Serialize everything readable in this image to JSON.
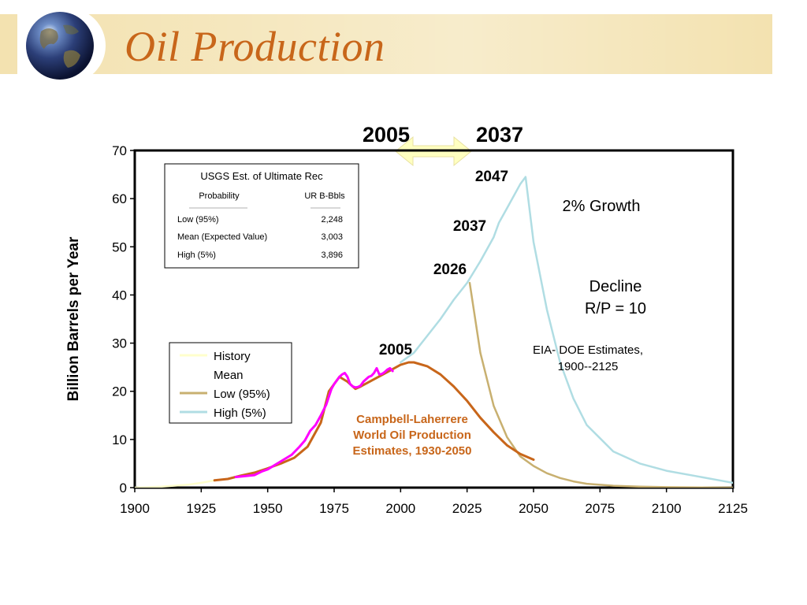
{
  "slide": {
    "title": "Oil Production",
    "icon": "globe-icon",
    "header_color": "#f3e2b0",
    "title_color": "#c8661a"
  },
  "chart_data": {
    "type": "line",
    "title": "",
    "xlabel": "",
    "ylabel": "Billion Barrels per Year",
    "xlim": [
      1900,
      2125
    ],
    "ylim": [
      0,
      70
    ],
    "x_ticks": [
      "1900",
      "1925",
      "1950",
      "1975",
      "2000",
      "2025",
      "2050",
      "2075",
      "2100",
      "2125"
    ],
    "y_ticks": [
      "0",
      "10",
      "20",
      "30",
      "40",
      "50",
      "60",
      "70"
    ],
    "grid": false,
    "legend_position": "left-middle",
    "legend": [
      "History",
      "Mean",
      "Low (95%)",
      "High (5%)"
    ],
    "series": [
      {
        "name": "History",
        "color": "#ffffcc",
        "x": [
          1900,
          1910,
          1920,
          1925,
          1930
        ],
        "y": [
          0,
          0.2,
          0.6,
          1.0,
          1.5
        ]
      },
      {
        "name": "High (5%)",
        "color": "#b0dde3",
        "x": [
          2000,
          2005,
          2010,
          2015,
          2020,
          2025,
          2030,
          2035,
          2037,
          2040,
          2045,
          2047,
          2050,
          2055,
          2060,
          2065,
          2070,
          2080,
          2090,
          2100,
          2110,
          2120,
          2125
        ],
        "y": [
          26,
          28,
          31.5,
          35,
          39,
          42.5,
          47,
          52,
          55,
          58,
          63,
          64.5,
          51,
          37,
          26,
          18.5,
          13,
          7.5,
          5,
          3.5,
          2.5,
          1.5,
          1
        ]
      },
      {
        "name": "Low (95%)",
        "color": "#c8b070",
        "x": [
          2026,
          2030,
          2035,
          2040,
          2045,
          2050,
          2055,
          2060,
          2065,
          2070,
          2080,
          2090,
          2100,
          2125
        ],
        "y": [
          42.5,
          28,
          17,
          10.5,
          6.5,
          4.5,
          3,
          2,
          1.3,
          0.8,
          0.4,
          0.2,
          0.1,
          0
        ]
      },
      {
        "name": "Campbell-Laherrere",
        "color": "#c8661a",
        "x": [
          1930,
          1935,
          1940,
          1945,
          1950,
          1955,
          1960,
          1965,
          1970,
          1973,
          1977,
          1980,
          1983,
          1985,
          1990,
          1995,
          2000,
          2003,
          2005,
          2010,
          2015,
          2020,
          2025,
          2030,
          2035,
          2040,
          2045,
          2050
        ],
        "y": [
          1.5,
          1.8,
          2.5,
          3.1,
          4,
          5,
          6.2,
          8.5,
          13.5,
          20,
          23,
          22,
          20.5,
          21,
          22.5,
          24,
          25.5,
          26,
          26,
          25.2,
          23.5,
          21,
          18,
          14.5,
          11.5,
          8.8,
          7,
          5.8
        ]
      },
      {
        "name": "History (actual)",
        "color": "#ff00ff",
        "x": [
          1938,
          1940,
          1945,
          1948,
          1950,
          1953,
          1956,
          1959,
          1962,
          1964,
          1966,
          1968,
          1970,
          1972,
          1974,
          1975,
          1977,
          1978,
          1979,
          1980,
          1981,
          1982,
          1983,
          1984,
          1985,
          1986,
          1987,
          1988,
          1989,
          1990,
          1991,
          1992,
          1993,
          1994,
          1995,
          1996,
          1997
        ],
        "y": [
          2.2,
          2.3,
          2.6,
          3.4,
          3.8,
          4.8,
          5.8,
          6.8,
          8.5,
          9.8,
          11.8,
          13,
          15,
          17.2,
          20.5,
          21.5,
          23,
          23.5,
          23.8,
          23,
          21.5,
          21,
          20.8,
          20.9,
          21.2,
          22,
          22.5,
          23,
          23.2,
          23.8,
          24.8,
          23.5,
          23.6,
          24,
          24.5,
          24.8,
          24.2
        ]
      }
    ],
    "table": {
      "title": "USGS Est. of Ultimate Rec",
      "headers": [
        "Probability",
        "UR B-Bbls"
      ],
      "rows": [
        [
          "Low (95%)",
          "2,248"
        ],
        [
          "Mean (Expected Value)",
          "3,003"
        ],
        [
          "High (5%)",
          "3,896"
        ]
      ]
    },
    "annotations": {
      "top_left_year": "2005",
      "top_right_year": "2037",
      "label_2047": "2047",
      "label_2037": "2037",
      "label_2026": "2026",
      "label_2005": "2005",
      "growth": "2% Growth",
      "decline_1": "Decline",
      "decline_2": "R/P = 10",
      "eia_1": "EIA- DOE Estimates,",
      "eia_2": "1900--2125",
      "campbell_1": "Campbell-Laherrere",
      "campbell_2": "World Oil Production",
      "campbell_3": "Estimates, 1930-2050"
    }
  }
}
